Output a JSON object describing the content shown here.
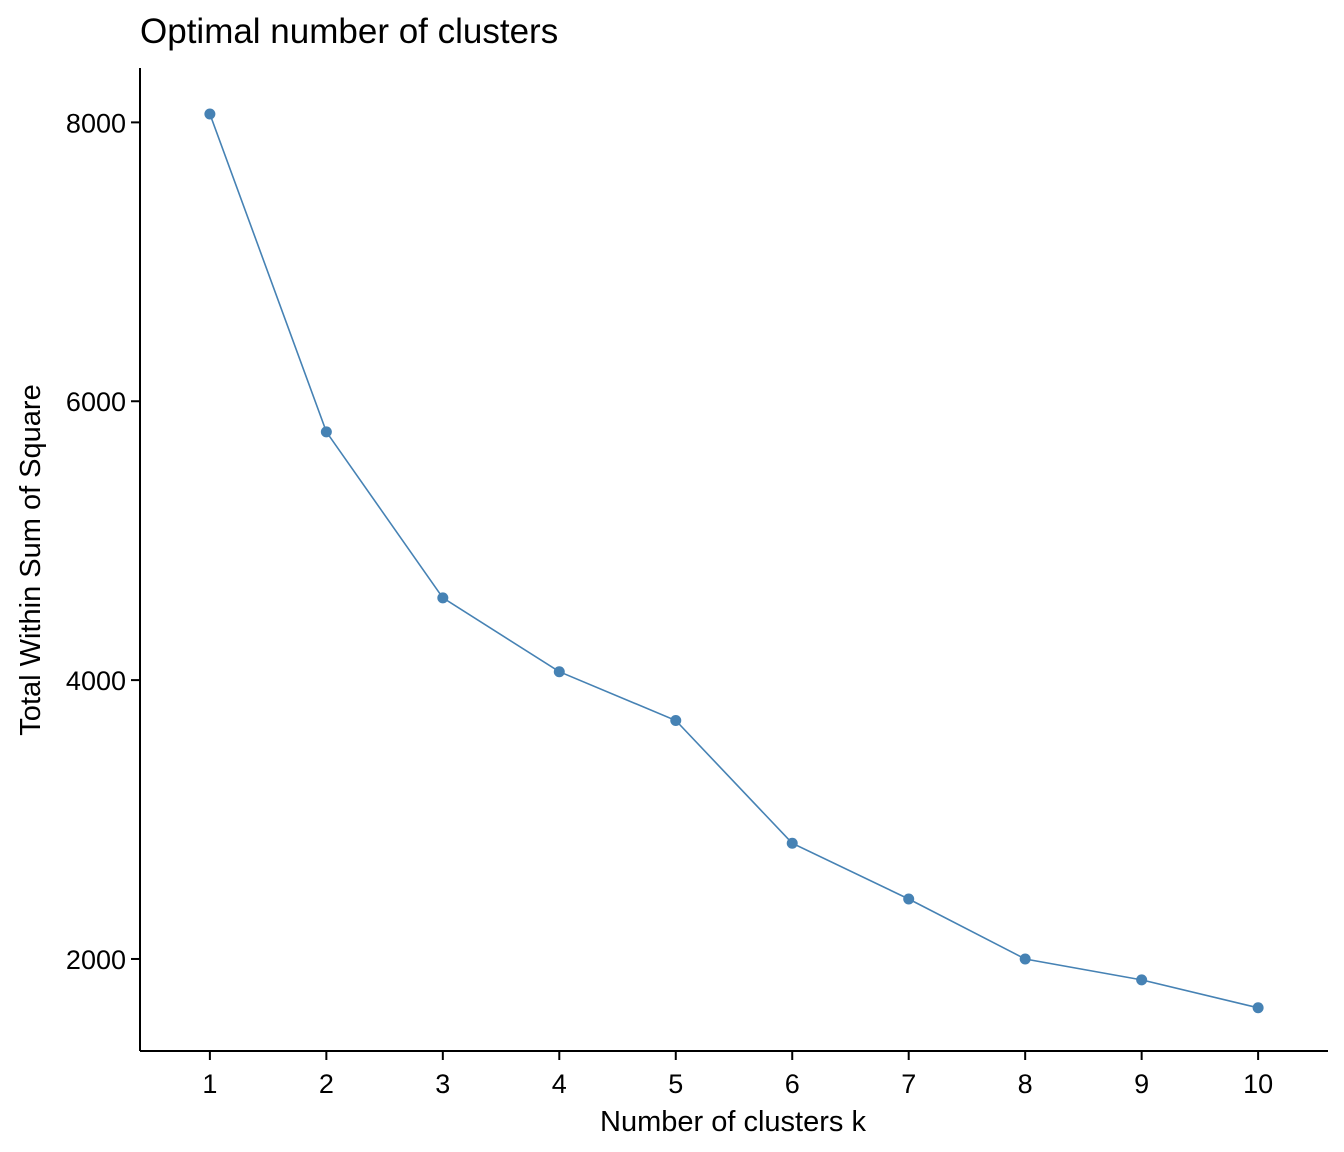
{
  "chart_data": {
    "type": "line",
    "title": "Optimal number of clusters",
    "xlabel": "Number of clusters k",
    "ylabel": "Total Within Sum of Square",
    "x": [
      1,
      2,
      3,
      4,
      5,
      6,
      7,
      8,
      9,
      10
    ],
    "series": [
      {
        "values": [
          8060,
          5780,
          4590,
          4060,
          3710,
          2830,
          2430,
          2000,
          1850,
          1650
        ]
      }
    ],
    "x_ticks": [
      "1",
      "2",
      "3",
      "4",
      "5",
      "6",
      "7",
      "8",
      "9",
      "10"
    ],
    "y_ticks": [
      "2000",
      "4000",
      "6000",
      "8000"
    ],
    "xlim": [
      0.4,
      10.6
    ],
    "ylim": [
      1340,
      8390
    ],
    "grid": false,
    "legend": "none",
    "colors": {
      "series": "#4682B4",
      "axis": "#000000"
    }
  }
}
